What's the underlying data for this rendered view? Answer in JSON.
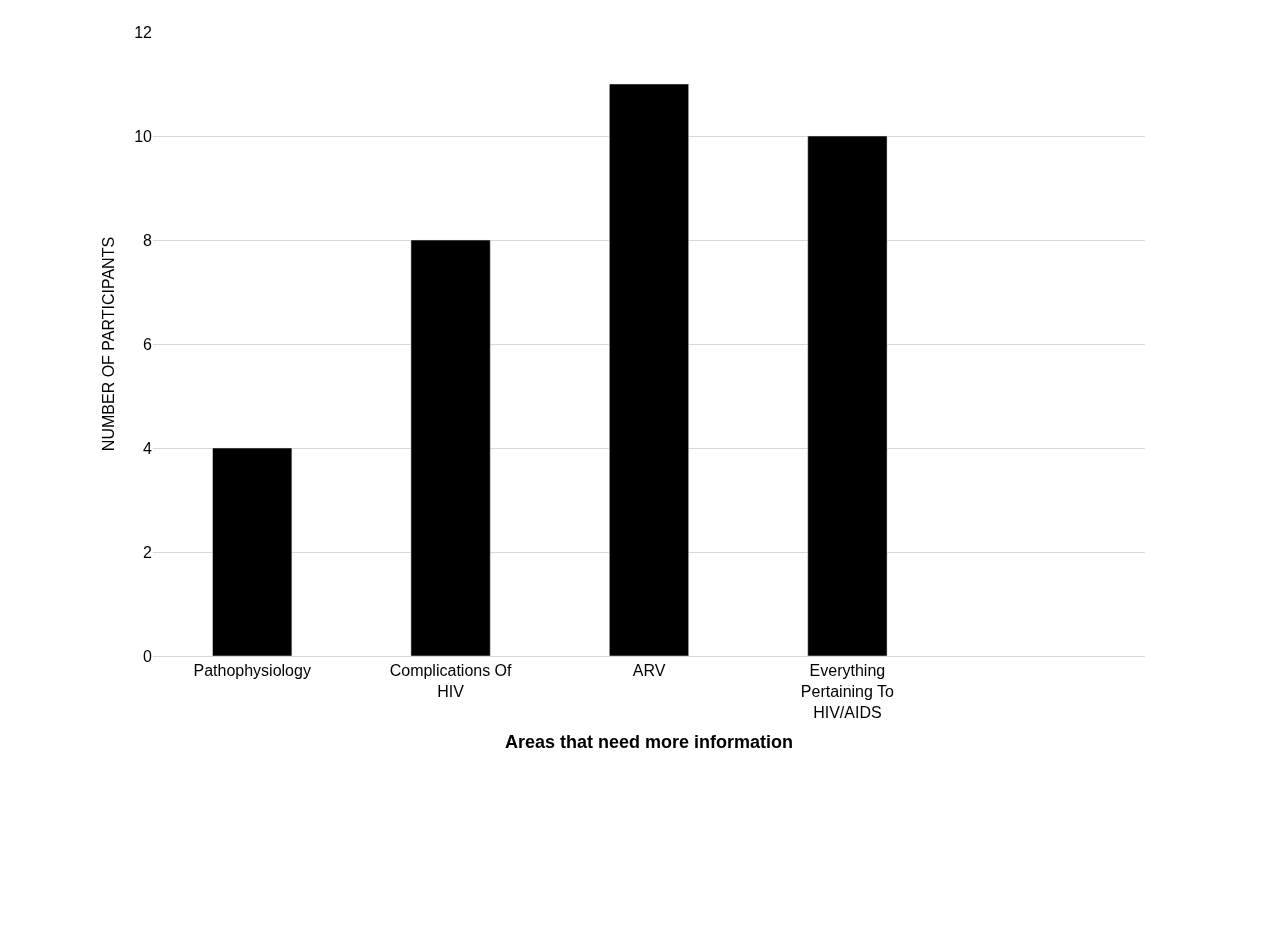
{
  "chart_data": {
    "type": "bar",
    "xlabel": "Areas that need more information",
    "ylabel": "NUMBER OF PARTICIPANTS",
    "categories": [
      "Pathophysiology",
      "Complications Of HIV",
      "ARV",
      "Everything Pertaining To HIV/AIDS",
      null
    ],
    "values": [
      4,
      8,
      11,
      10,
      null
    ],
    "color": "#000000",
    "ylim": [
      0,
      12
    ],
    "yticks": [
      0,
      2,
      4,
      6,
      8,
      10,
      12
    ],
    "grid": "y"
  }
}
